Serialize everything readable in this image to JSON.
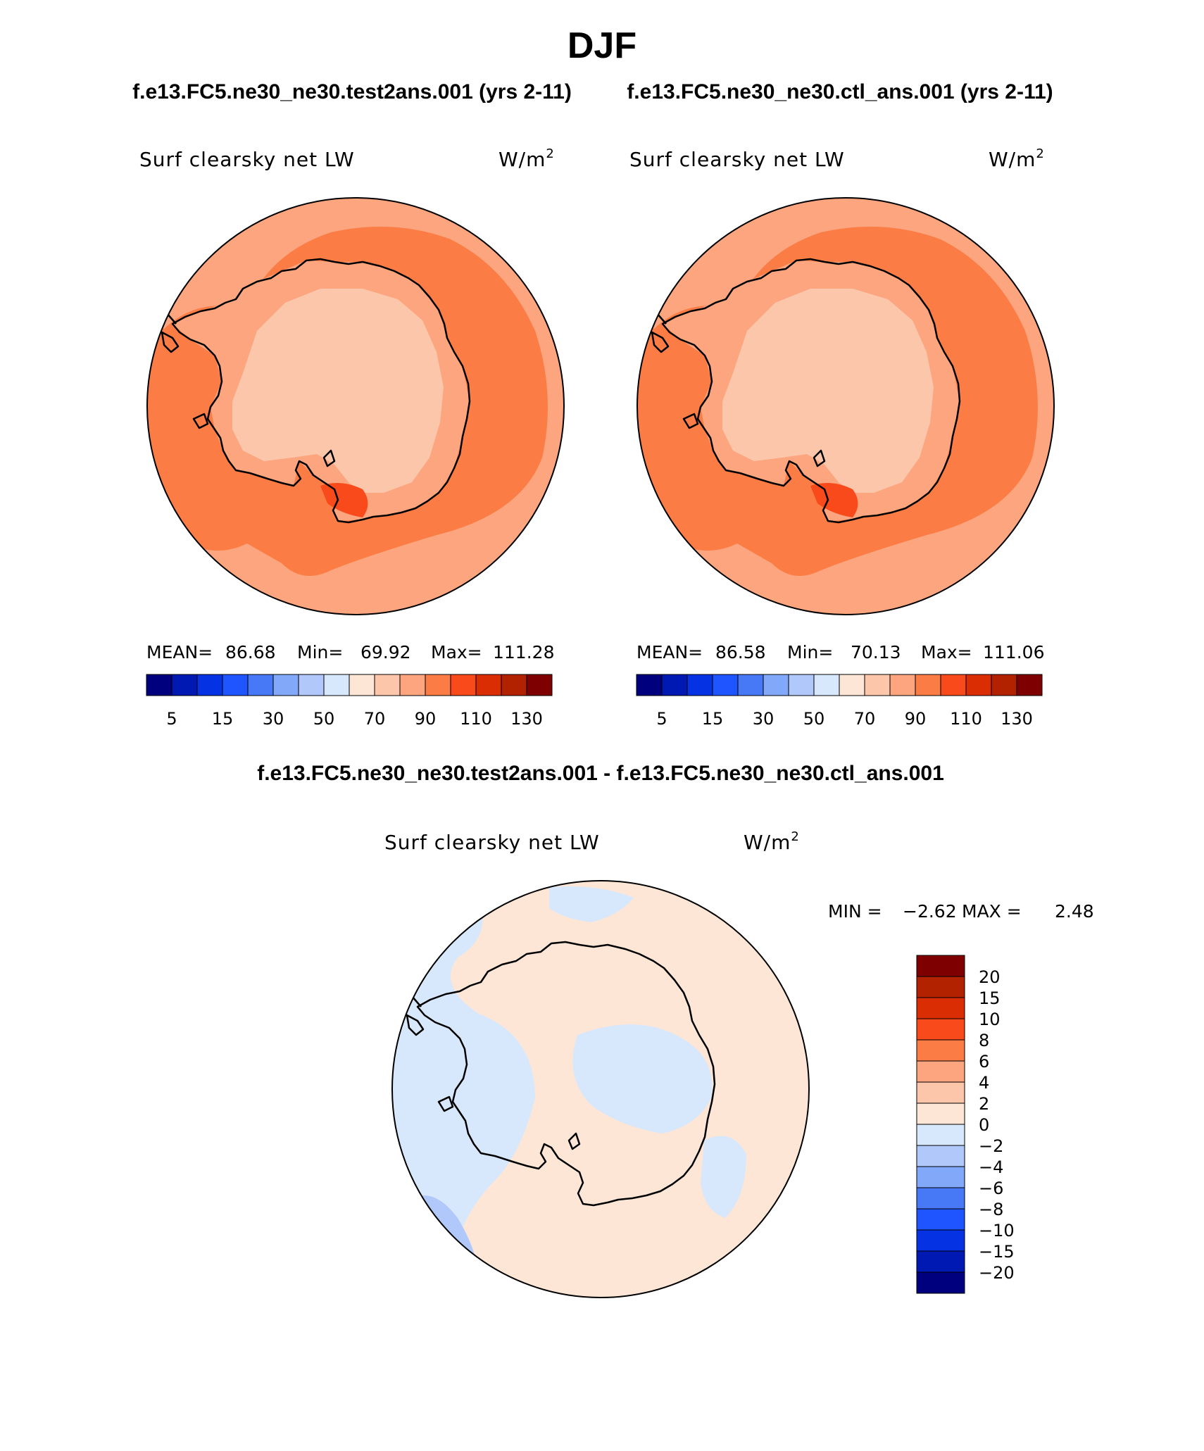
{
  "title": "DJF",
  "case_titles": {
    "left": "f.e13.FC5.ne30_ne30.test2ans.001 (yrs 2-11)",
    "right": "f.e13.FC5.ne30_ne30.ctl_ans.001 (yrs 2-11)",
    "diff": "f.e13.FC5.ne30_ne30.test2ans.001 - f.e13.FC5.ne30_ne30.ctl_ans.001"
  },
  "panels": {
    "left": {
      "variable": "Surf clearsky net LW",
      "units_base": "W/m",
      "units_sup": "2",
      "mean_label": "MEAN=",
      "mean": "86.68",
      "min_label": "Min=",
      "min": "69.92",
      "max_label": "Max=",
      "max": "111.28"
    },
    "right": {
      "variable": "Surf clearsky net LW",
      "units_base": "W/m",
      "units_sup": "2",
      "mean_label": "MEAN=",
      "mean": "86.58",
      "min_label": "Min=",
      "min": "70.13",
      "max_label": "Max=",
      "max": "111.06"
    },
    "diff": {
      "variable": "Surf clearsky net LW",
      "units_base": "W/m",
      "units_sup": "2",
      "min_label": "MIN =",
      "min": "−2.62",
      "max_label": "MAX =",
      "max": "2.48"
    }
  },
  "colorbar_main": {
    "colors": [
      "#00007f",
      "#0019b2",
      "#0533e3",
      "#1e55ff",
      "#4778f5",
      "#82a8fa",
      "#b0c8fa",
      "#d8e8fc",
      "#fde6d5",
      "#fcc6aa",
      "#fca57f",
      "#fc7c45",
      "#f84a1a",
      "#db2d04",
      "#b22100",
      "#7f0000"
    ],
    "tick_labels": [
      "5",
      "15",
      "30",
      "50",
      "70",
      "90",
      "110",
      "130"
    ]
  },
  "colorbar_diff": {
    "colors": [
      "#7f0000",
      "#b22100",
      "#db2d04",
      "#f84a1a",
      "#fc7c45",
      "#fca57f",
      "#fcc6aa",
      "#fde6d5",
      "#d8e8fc",
      "#b0c8fa",
      "#82a8fa",
      "#4778f5",
      "#1e55ff",
      "#0533e3",
      "#0019b2",
      "#00007f"
    ],
    "tick_labels": [
      "20",
      "15",
      "10",
      "8",
      "6",
      "4",
      "2",
      "0",
      "−2",
      "−4",
      "−6",
      "−8",
      "−10",
      "−15",
      "−20"
    ]
  },
  "map_colors": {
    "ocean_band_low": "#fca57f",
    "ocean_band_high": "#fc7c45",
    "interior": "#fcc6aa",
    "coast_band": "#fca57f",
    "hotspot": "#f84a1a",
    "diff_pos": "#fde6d5",
    "diff_neg": "#d8e8fc",
    "diff_neg2": "#b0c8fa"
  }
}
